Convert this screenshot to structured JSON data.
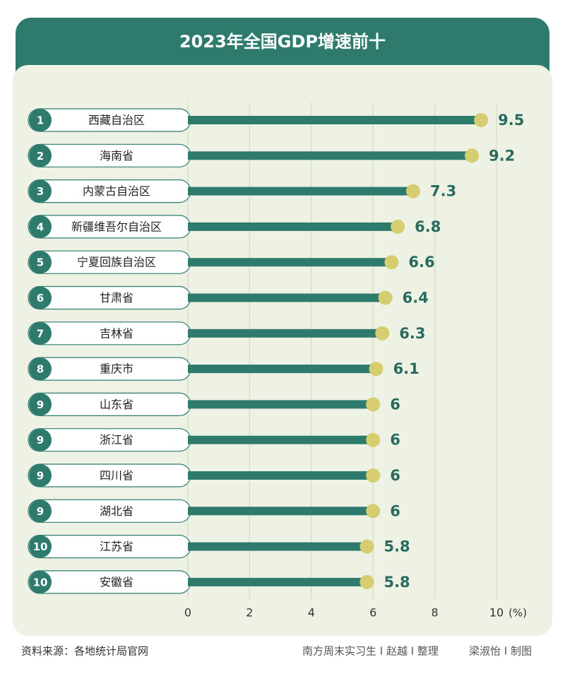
{
  "chart_data": {
    "type": "bar",
    "orientation": "horizontal",
    "title": "2023年全国GDP增速前十",
    "ranks": [
      "1",
      "2",
      "3",
      "4",
      "5",
      "6",
      "7",
      "8",
      "9",
      "9",
      "9",
      "9",
      "10",
      "10"
    ],
    "categories": [
      "西藏自治区",
      "海南省",
      "内蒙古自治区",
      "新疆维吾尔自治区",
      "宁夏回族自治区",
      "甘肃省",
      "吉林省",
      "重庆市",
      "山东省",
      "浙江省",
      "四川省",
      "湖北省",
      "江苏省",
      "安徽省"
    ],
    "values": [
      9.5,
      9.2,
      7.3,
      6.8,
      6.6,
      6.4,
      6.3,
      6.1,
      6,
      6,
      6,
      6,
      5.8,
      5.8
    ],
    "color": "#2e7b6e",
    "dot_color": "#d5cd70",
    "xlim": [
      0,
      10
    ],
    "xticks": [
      0,
      2,
      4,
      6,
      8,
      10
    ],
    "x_unit": "(%)",
    "grid": true,
    "source": "资料来源：各地统计局官网",
    "credits": [
      "南方周末实习生 I 赵越 I 整理",
      "梁淑怡 I 制图"
    ]
  }
}
